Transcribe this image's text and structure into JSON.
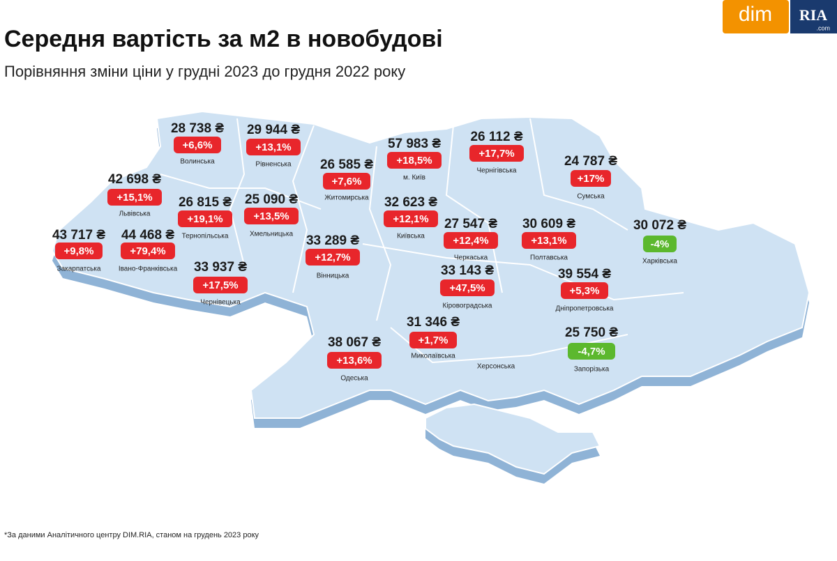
{
  "header": {
    "title": "Середня вартість за м2 в новобудові",
    "subtitle": "Порівняння зміни ціни у грудні 2023 до грудня 2022 року"
  },
  "logo": {
    "dim": "dim",
    "ria": "RIA",
    "ria_domain": ".com"
  },
  "regions": [
    {
      "name": "Волинська",
      "price": "28 738 ₴",
      "change": "+6,6%",
      "color": "#e8262b"
    },
    {
      "name": "Рівненська",
      "price": "29 944 ₴",
      "change": "+13,1%",
      "color": "#e8262b"
    },
    {
      "name": "Житомирська",
      "price": "26 585 ₴",
      "change": "+7,6%",
      "color": "#e8262b"
    },
    {
      "name": "м. Київ",
      "price": "57 983 ₴",
      "change": "+18,5%",
      "color": "#e8262b"
    },
    {
      "name": "Чернігівська",
      "price": "26 112 ₴",
      "change": "+17,7%",
      "color": "#e8262b"
    },
    {
      "name": "Сумська",
      "price": "24 787 ₴",
      "change": "+17%",
      "color": "#e8262b"
    },
    {
      "name": "Львівська",
      "price": "42 698 ₴",
      "change": "+15,1%",
      "color": "#e8262b"
    },
    {
      "name": "Тернопільська",
      "price": "26 815 ₴",
      "change": "+19,1%",
      "color": "#e8262b"
    },
    {
      "name": "Хмельницька",
      "price": "25 090 ₴",
      "change": "+13,5%",
      "color": "#e8262b"
    },
    {
      "name": "Київська",
      "price": "32 623 ₴",
      "change": "+12,1%",
      "color": "#e8262b"
    },
    {
      "name": "Черкаська",
      "price": "27 547 ₴",
      "change": "+12,4%",
      "color": "#e8262b"
    },
    {
      "name": "Полтавська",
      "price": "30 609 ₴",
      "change": "+13,1%",
      "color": "#e8262b"
    },
    {
      "name": "Харківська",
      "price": "30 072 ₴",
      "change": "-4%",
      "color": "#5cb82e"
    },
    {
      "name": "Закарпатська",
      "price": "43 717 ₴",
      "change": "+9,8%",
      "color": "#e8262b"
    },
    {
      "name": "Івано-Франківська",
      "price": "44 468 ₴",
      "change": "+79,4%",
      "color": "#e8262b"
    },
    {
      "name": "Вінницька",
      "price": "33 289 ₴",
      "change": "+12,7%",
      "color": "#e8262b"
    },
    {
      "name": "Чернівецька",
      "price": "33 937 ₴",
      "change": "+17,5%",
      "color": "#e8262b"
    },
    {
      "name": "Кіровоградська",
      "price": "33 143 ₴",
      "change": "+47,5%",
      "color": "#e8262b"
    },
    {
      "name": "Дніпропетровська",
      "price": "39 554 ₴",
      "change": "+5,3%",
      "color": "#e8262b"
    },
    {
      "name": "Миколаївська",
      "price": "31 346 ₴",
      "change": "+1,7%",
      "color": "#e8262b"
    },
    {
      "name": "Одеська",
      "price": "38 067 ₴",
      "change": "+13,6%",
      "color": "#e8262b"
    },
    {
      "name": "Запорізька",
      "price": "25 750 ₴",
      "change": "-4,7%",
      "color": "#5cb82e"
    }
  ],
  "other_regions": [
    "Херсонська"
  ],
  "footnote": "*За даними Аналітичного центру DIM.RIA, станом на грудень 2023 року"
}
